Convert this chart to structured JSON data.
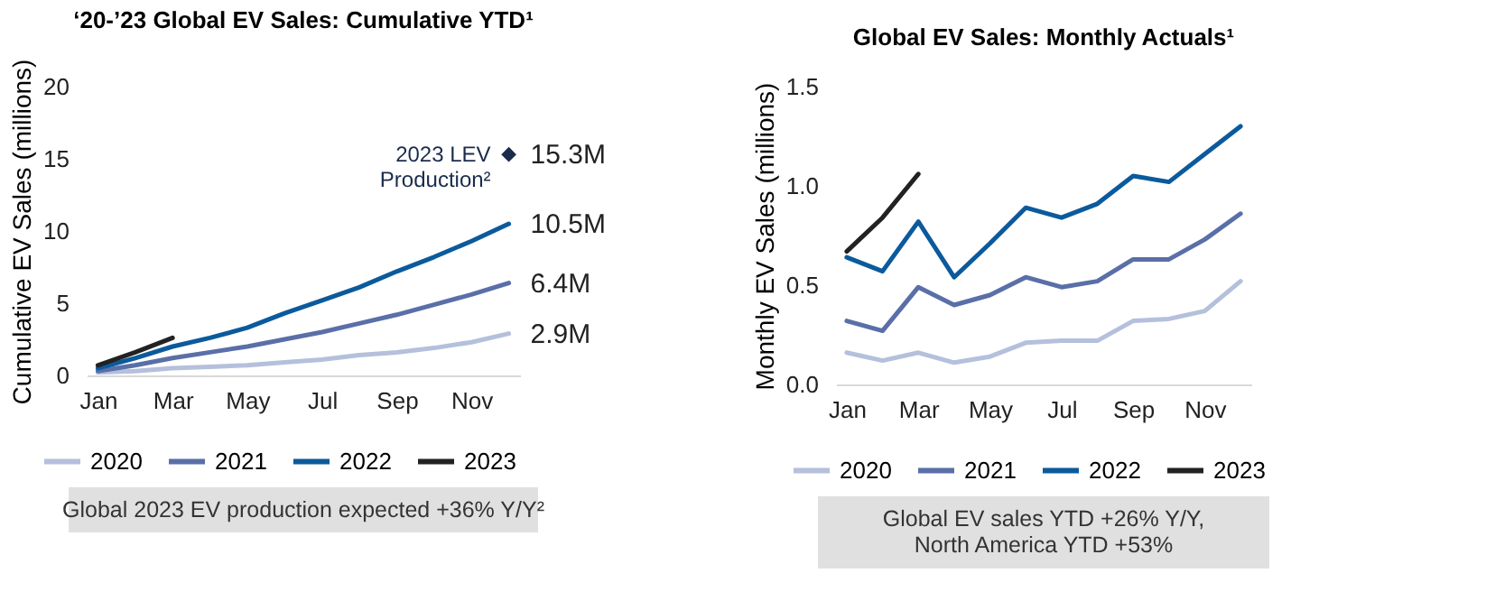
{
  "chart_data": [
    {
      "type": "line",
      "title": "‘20-’23 Global EV Sales: Cumulative YTD¹",
      "ylabel": "Cumulative EV Sales (millions)",
      "categories": [
        "Jan",
        null,
        "Mar",
        null,
        "May",
        null,
        "Jul",
        null,
        "Sep",
        null,
        "Nov",
        null
      ],
      "ylim": [
        0,
        20
      ],
      "yticks": [
        0,
        5,
        10,
        15,
        20
      ],
      "grid": false,
      "legend": "bottom",
      "series": [
        {
          "name": "2020",
          "color": "#b4c0dc",
          "values": [
            0.2,
            0.3,
            0.5,
            0.6,
            0.7,
            0.9,
            1.1,
            1.4,
            1.6,
            1.9,
            2.3,
            2.9
          ],
          "value_labels": [
            null,
            null,
            null,
            null,
            null,
            null,
            null,
            null,
            null,
            null,
            null,
            "2.9M"
          ]
        },
        {
          "name": "2021",
          "color": "#5a6fa8",
          "values": [
            0.3,
            0.7,
            1.2,
            1.6,
            2.0,
            2.5,
            3.0,
            3.6,
            4.2,
            4.9,
            5.6,
            6.4
          ],
          "value_labels": [
            null,
            null,
            null,
            null,
            null,
            null,
            null,
            null,
            null,
            null,
            null,
            "6.4M"
          ]
        },
        {
          "name": "2022",
          "color": "#0b5a9c",
          "values": [
            0.5,
            1.2,
            2.0,
            2.6,
            3.3,
            4.3,
            5.2,
            6.1,
            7.2,
            8.2,
            9.3,
            10.5
          ],
          "value_labels": [
            null,
            null,
            null,
            null,
            null,
            null,
            null,
            null,
            null,
            null,
            null,
            "10.5M"
          ]
        },
        {
          "name": "2023",
          "color": "#222222",
          "values": [
            0.7,
            1.6,
            2.6,
            null,
            null,
            null,
            null,
            null,
            null,
            null,
            null,
            null
          ]
        },
        {
          "type": "scatter",
          "name": "2023 LEV\nProduction²",
          "marker": "diamond",
          "color": "#1a2b4c",
          "values": [
            null,
            null,
            null,
            null,
            null,
            null,
            null,
            null,
            null,
            null,
            null,
            15.3
          ],
          "value_labels": [
            null,
            null,
            null,
            null,
            null,
            null,
            null,
            null,
            null,
            null,
            null,
            "15.3M"
          ]
        }
      ],
      "annotations": [
        "Global 2023 EV production expected +36% Y/Y²"
      ]
    },
    {
      "type": "line",
      "title": "Global EV Sales: Monthly Actuals¹",
      "ylabel": "Monthly EV Sales (millions)",
      "categories": [
        "Jan",
        null,
        "Mar",
        null,
        "May",
        null,
        "Jul",
        null,
        "Sep",
        null,
        "Nov",
        null
      ],
      "ylim": [
        0,
        1.5
      ],
      "yticks": [
        {
          "value": 0,
          "label": "0.0"
        },
        0.5,
        {
          "value": 1,
          "label": "1.0"
        },
        1.5
      ],
      "grid": false,
      "legend": "bottom",
      "series": [
        {
          "name": "2020",
          "color": "#b4c0dc",
          "values": [
            0.16,
            0.12,
            0.16,
            0.11,
            0.14,
            0.21,
            0.22,
            0.22,
            0.32,
            0.33,
            0.37,
            0.52
          ]
        },
        {
          "name": "2021",
          "color": "#5a6fa8",
          "values": [
            0.32,
            0.27,
            0.49,
            0.4,
            0.45,
            0.54,
            0.49,
            0.52,
            0.63,
            0.63,
            0.73,
            0.86
          ]
        },
        {
          "name": "2022",
          "color": "#0b5a9c",
          "values": [
            0.64,
            0.57,
            0.82,
            0.54,
            0.71,
            0.89,
            0.84,
            0.91,
            1.05,
            1.02,
            1.16,
            1.3
          ]
        },
        {
          "name": "2023",
          "color": "#222222",
          "values": [
            0.67,
            0.84,
            1.06,
            null,
            null,
            null,
            null,
            null,
            null,
            null,
            null,
            null
          ]
        }
      ],
      "annotations": [
        "Global EV sales YTD +26% Y/Y,\nNorth America YTD +53%"
      ]
    }
  ]
}
